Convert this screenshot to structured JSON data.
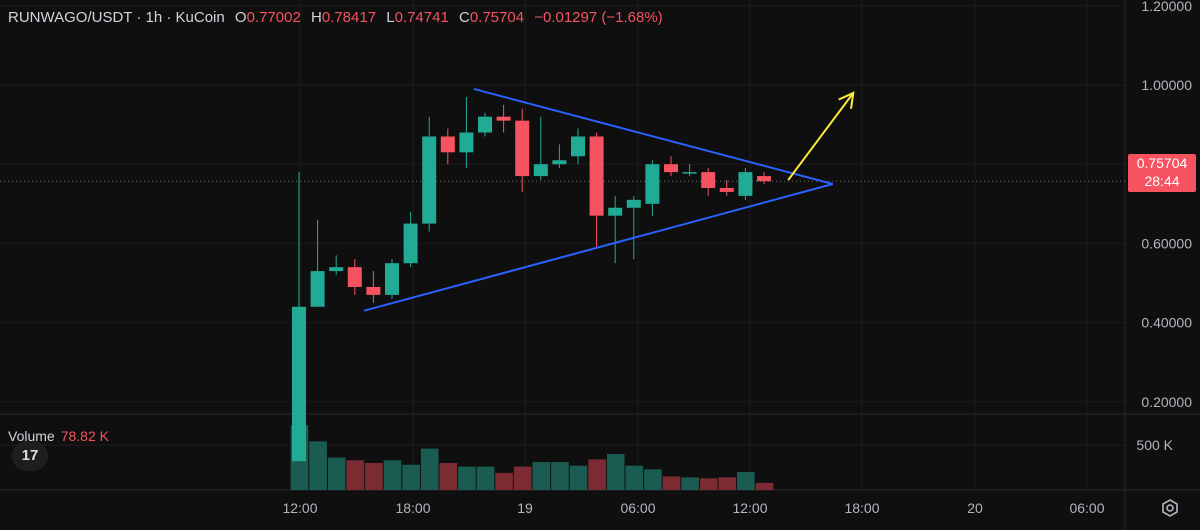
{
  "header": {
    "symbol": "RUNWAGO/USDT · 1h · KuCoin",
    "o_label": "O",
    "o_value": "0.77002",
    "h_label": "H",
    "h_value": "0.78417",
    "l_label": "L",
    "l_value": "0.74741",
    "c_label": "C",
    "c_value": "0.75704",
    "change": "−0.01297 (−1.68%)"
  },
  "volume_legend": {
    "label": "Volume",
    "value": "78.82 K"
  },
  "price_tag": {
    "price": "0.75704",
    "countdown": "28:44"
  },
  "logo_text": "17",
  "colors": {
    "up": "#22ab94",
    "down": "#f7525f",
    "vol_up": "#1a5c52",
    "vol_down": "#7d2b33",
    "trend": "#2962ff",
    "arrow": "#ffeb3b"
  },
  "chart_data": {
    "type": "candlestick",
    "y_axis_labels": [
      "1.20000",
      "1.00000",
      "0.80000",
      "0.60000",
      "0.40000",
      "0.20000"
    ],
    "y_ticks": [
      1.2,
      1.0,
      0.8,
      0.6,
      0.4,
      0.2
    ],
    "ylim": [
      0.0,
      1.22
    ],
    "volume_axis_label": "500 K",
    "volume_tick": 500000,
    "volume_max": 800000,
    "x_labels": [
      "12:00",
      "18:00",
      "19",
      "06:00",
      "12:00",
      "18:00",
      "20",
      "06:00"
    ],
    "candles": [
      {
        "o": 0.05,
        "h": 0.78,
        "l": 0.05,
        "c": 0.44,
        "v": 720000
      },
      {
        "o": 0.44,
        "h": 0.66,
        "l": 0.44,
        "c": 0.53,
        "v": 540000
      },
      {
        "o": 0.53,
        "h": 0.57,
        "l": 0.52,
        "c": 0.54,
        "v": 360000
      },
      {
        "o": 0.54,
        "h": 0.56,
        "l": 0.47,
        "c": 0.49,
        "v": 330000
      },
      {
        "o": 0.49,
        "h": 0.53,
        "l": 0.45,
        "c": 0.47,
        "v": 300000
      },
      {
        "o": 0.47,
        "h": 0.56,
        "l": 0.46,
        "c": 0.55,
        "v": 330000
      },
      {
        "o": 0.55,
        "h": 0.68,
        "l": 0.54,
        "c": 0.65,
        "v": 280000
      },
      {
        "o": 0.65,
        "h": 0.92,
        "l": 0.63,
        "c": 0.87,
        "v": 460000
      },
      {
        "o": 0.87,
        "h": 0.89,
        "l": 0.8,
        "c": 0.83,
        "v": 300000
      },
      {
        "o": 0.83,
        "h": 0.97,
        "l": 0.79,
        "c": 0.88,
        "v": 260000
      },
      {
        "o": 0.88,
        "h": 0.93,
        "l": 0.87,
        "c": 0.92,
        "v": 260000
      },
      {
        "o": 0.92,
        "h": 0.95,
        "l": 0.88,
        "c": 0.91,
        "v": 190000
      },
      {
        "o": 0.91,
        "h": 0.94,
        "l": 0.73,
        "c": 0.77,
        "v": 260000
      },
      {
        "o": 0.77,
        "h": 0.92,
        "l": 0.76,
        "c": 0.8,
        "v": 310000
      },
      {
        "o": 0.8,
        "h": 0.85,
        "l": 0.79,
        "c": 0.81,
        "v": 310000
      },
      {
        "o": 0.82,
        "h": 0.89,
        "l": 0.8,
        "c": 0.87,
        "v": 270000
      },
      {
        "o": 0.87,
        "h": 0.88,
        "l": 0.59,
        "c": 0.67,
        "v": 340000
      },
      {
        "o": 0.67,
        "h": 0.72,
        "l": 0.55,
        "c": 0.69,
        "v": 400000
      },
      {
        "o": 0.69,
        "h": 0.72,
        "l": 0.56,
        "c": 0.71,
        "v": 270000
      },
      {
        "o": 0.7,
        "h": 0.81,
        "l": 0.67,
        "c": 0.8,
        "v": 230000
      },
      {
        "o": 0.8,
        "h": 0.82,
        "l": 0.77,
        "c": 0.78,
        "v": 150000
      },
      {
        "o": 0.78,
        "h": 0.8,
        "l": 0.77,
        "c": 0.78,
        "v": 140000
      },
      {
        "o": 0.78,
        "h": 0.79,
        "l": 0.72,
        "c": 0.74,
        "v": 130000
      },
      {
        "o": 0.74,
        "h": 0.76,
        "l": 0.72,
        "c": 0.73,
        "v": 140000
      },
      {
        "o": 0.72,
        "h": 0.79,
        "l": 0.71,
        "c": 0.78,
        "v": 200000
      },
      {
        "o": 0.77,
        "h": 0.78,
        "l": 0.75,
        "c": 0.75704,
        "v": 78820
      }
    ],
    "current_price": 0.75704,
    "trendlines": [
      {
        "x0": 9.4,
        "y0": 0.99,
        "x1": 28.7,
        "y1": 0.75
      },
      {
        "x0": 3.5,
        "y0": 0.43,
        "x1": 28.7,
        "y1": 0.75
      }
    ],
    "arrow": {
      "x0": 26.3,
      "y0": 0.76,
      "x1": 29.8,
      "y1": 0.98
    }
  }
}
